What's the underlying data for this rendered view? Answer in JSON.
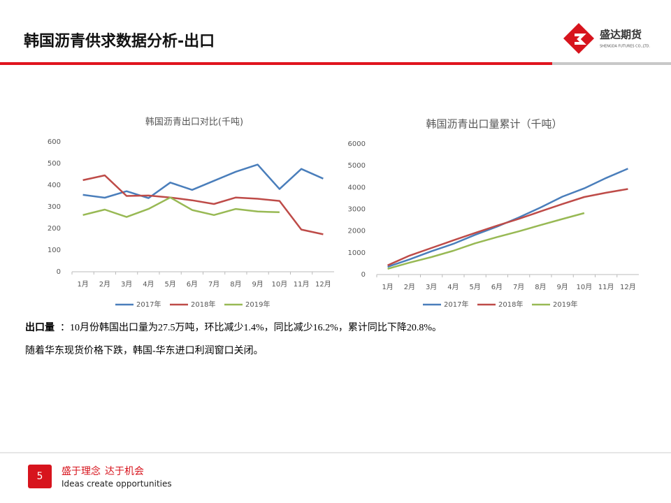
{
  "header": {
    "title": "韩国沥青供求数据分析-出口",
    "logo_name": "盛达期货",
    "logo_sub": "SHENGDA FUTURES CO.,LTD."
  },
  "chart_data": [
    {
      "type": "line",
      "title": "韩国沥青出口对比(千吨)",
      "categories": [
        "1月",
        "2月",
        "3月",
        "4月",
        "5月",
        "6月",
        "7月",
        "8月",
        "9月",
        "10月",
        "11月",
        "12月"
      ],
      "series": [
        {
          "name": "2017年",
          "color": "#4a7ebb",
          "values": [
            355,
            342,
            372,
            340,
            412,
            378,
            420,
            462,
            495,
            382,
            475,
            430
          ]
        },
        {
          "name": "2018年",
          "color": "#be4b48",
          "values": [
            423,
            445,
            350,
            352,
            343,
            330,
            313,
            343,
            337,
            327,
            195,
            173
          ]
        },
        {
          "name": "2019年",
          "color": "#98b954",
          "values": [
            262,
            287,
            253,
            290,
            343,
            285,
            262,
            290,
            278,
            275,
            null,
            null
          ]
        }
      ],
      "ylim": [
        0,
        600
      ],
      "yticks": [
        0,
        100,
        200,
        300,
        400,
        500,
        600
      ],
      "grid": false,
      "legend": "bottom"
    },
    {
      "type": "line",
      "title": "韩国沥青出口量累计（千吨）",
      "categories": [
        "1月",
        "2月",
        "3月",
        "4月",
        "5月",
        "6月",
        "7月",
        "8月",
        "9月",
        "10月",
        "11月",
        "12月"
      ],
      "series": [
        {
          "name": "2017年",
          "color": "#4a7ebb",
          "values": [
            355,
            697,
            1069,
            1409,
            1821,
            2199,
            2619,
            3081,
            3576,
            3958,
            4433,
            4863
          ]
        },
        {
          "name": "2018年",
          "color": "#be4b48",
          "values": [
            423,
            868,
            1218,
            1570,
            1913,
            2243,
            2556,
            2899,
            3236,
            3563,
            3758,
            3931
          ]
        },
        {
          "name": "2019年",
          "color": "#98b954",
          "values": [
            262,
            549,
            802,
            1092,
            1435,
            1720,
            1982,
            2272,
            2550,
            2825,
            null,
            null
          ]
        }
      ],
      "ylim": [
        0,
        6000
      ],
      "yticks": [
        0,
        1000,
        2000,
        3000,
        4000,
        5000,
        6000
      ],
      "grid": false,
      "legend": "bottom"
    }
  ],
  "text": {
    "label": "出口量",
    "body": "：10月份韩国出口量为27.5万吨，环比减少1.4%，同比减少16.2%，累计同比下降20.8%。",
    "line2": "随着华东现货价格下跌，韩国-华东进口利润窗口关闭。"
  },
  "footer": {
    "page": "5",
    "slogan_1": "盛于理念",
    "slogan_2": "达于机会",
    "slogan_en": "Ideas create opportunities"
  }
}
